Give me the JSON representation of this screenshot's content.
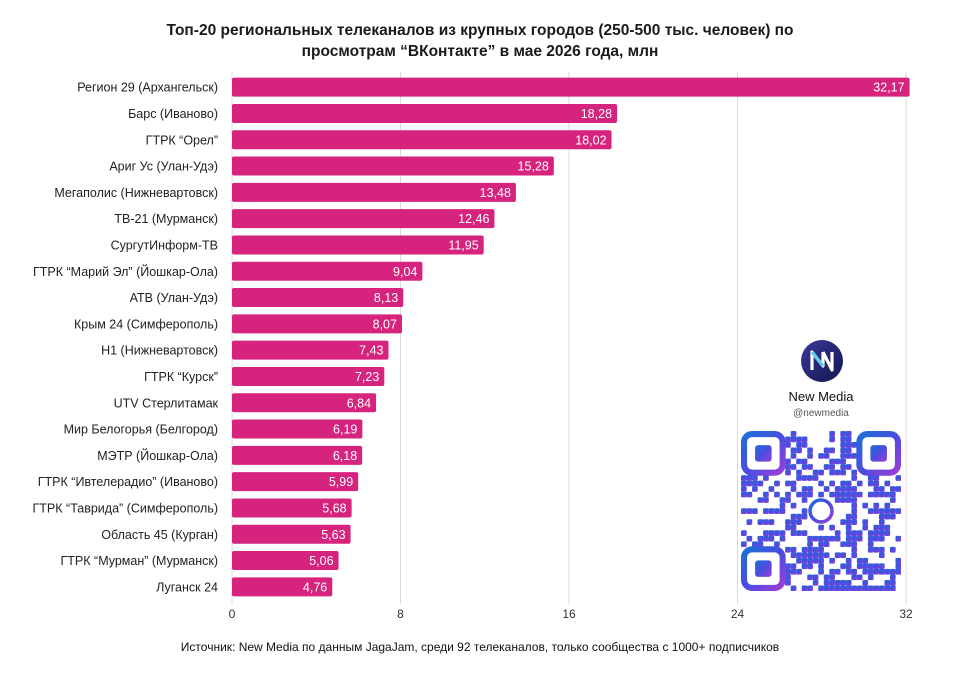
{
  "chart_data": {
    "type": "bar",
    "orientation": "horizontal",
    "title": [
      "Топ-20 региональных телеканалов из крупных городов (250-500 тыс. человек) по",
      "просмотрам “ВКонтакте” в мае 2026 года, млн"
    ],
    "categories": [
      "Регион 29 (Архангельск)",
      "Барс (Иваново)",
      "ГТРК “Орел”",
      "Ариг Ус (Улан-Удэ)",
      "Мегаполис (Нижневартовск)",
      "ТВ-21 (Мурманск)",
      "СургутИнформ-ТВ",
      "ГТРК “Марий Эл” (Йошкар-Ола)",
      "АТВ (Улан-Удэ)",
      "Крым 24 (Симферополь)",
      "Н1 (Нижневартовск)",
      "ГТРК “Курск”",
      "UTV Стерлитамак",
      "Мир Белогорья (Белгород)",
      "МЭТР (Йошкар-Ола)",
      "ГТРК “Ивтелерадио” (Иваново)",
      "ГТРК “Таврида” (Симферополь)",
      "Область 45 (Курган)",
      "ГТРК “Мурман” (Мурманск)",
      "Луганск 24"
    ],
    "values": [
      32.17,
      18.28,
      18.02,
      15.28,
      13.48,
      12.46,
      11.95,
      9.04,
      8.13,
      8.07,
      7.43,
      7.23,
      6.84,
      6.19,
      6.18,
      5.99,
      5.68,
      5.63,
      5.06,
      4.76
    ],
    "value_labels": [
      "32,17",
      "18,28",
      "18,02",
      "15,28",
      "13,48",
      "12,46",
      "11,95",
      "9,04",
      "8,13",
      "8,07",
      "7,43",
      "7,23",
      "6,84",
      "6,19",
      "6,18",
      "5,99",
      "5,68",
      "5,63",
      "5,06",
      "4,76"
    ],
    "xlim": [
      0,
      32
    ],
    "xticks": [
      0,
      8,
      16,
      24,
      32
    ],
    "xlabel": "",
    "ylabel": "",
    "grid": "vertical",
    "bar_color": "#D6247E"
  },
  "source": "Источник: New Media по данным JagaJam, среди 92 телеканалов, только сообщества с 1000+ подписчиков",
  "brand": {
    "name": "New Media",
    "handle": "@newmedia",
    "logo_icon": "new-media-logo",
    "qr_icon": "qr-code"
  }
}
